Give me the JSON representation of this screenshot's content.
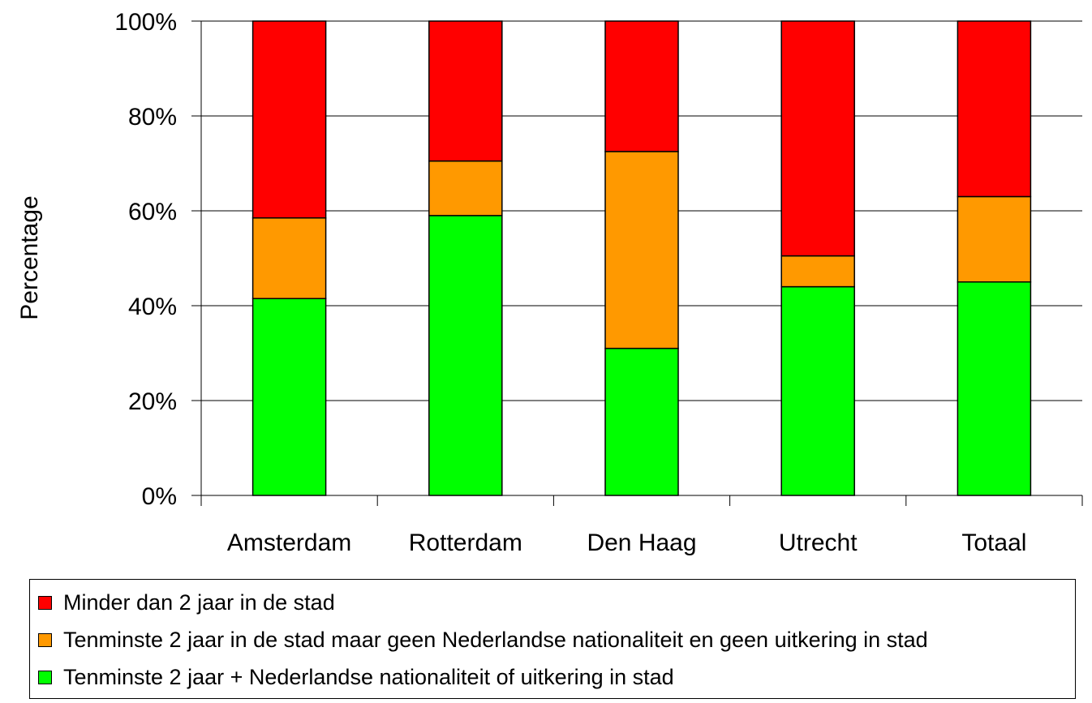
{
  "chart_data": {
    "type": "bar",
    "stacked": true,
    "categories": [
      "Amsterdam",
      "Rotterdam",
      "Den Haag",
      "Utrecht",
      "Totaal"
    ],
    "series": [
      {
        "name": "Tenminste 2 jaar + Nederlandse nationaliteit of uitkering in stad",
        "color": "#00ff00",
        "values": [
          41.5,
          59,
          31,
          44,
          45
        ]
      },
      {
        "name": "Tenminste 2 jaar in de stad maar geen Nederlandse nationaliteit en geen uitkering in stad",
        "color": "#ff9900",
        "values": [
          17,
          11.5,
          41.5,
          6.5,
          18
        ]
      },
      {
        "name": "Minder dan 2 jaar in de stad",
        "color": "#ff0000",
        "values": [
          41.5,
          29.5,
          27.5,
          49.5,
          37
        ]
      }
    ],
    "legend_order": [
      2,
      1,
      0
    ],
    "ylabel": "Percentage",
    "xlabel": "",
    "ylim": [
      0,
      100
    ],
    "yticks": [
      "0%",
      "20%",
      "40%",
      "60%",
      "80%",
      "100%"
    ],
    "grid": true,
    "legend_position": "bottom"
  }
}
